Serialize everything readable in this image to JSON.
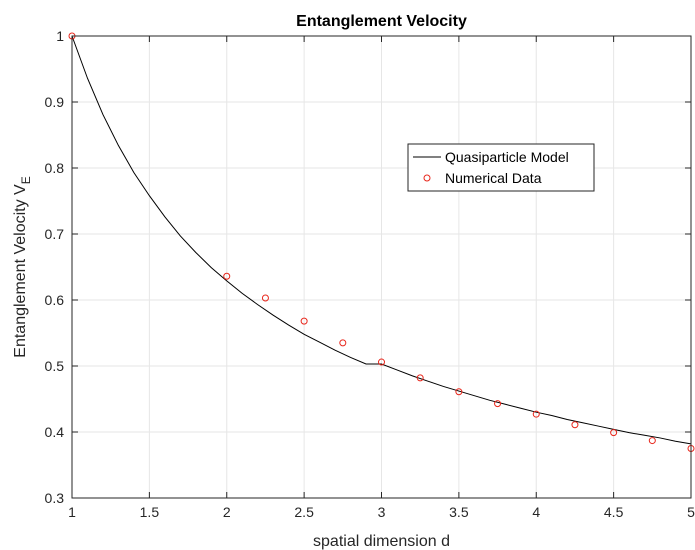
{
  "chart_data": {
    "type": "line",
    "title": "Entanglement Velocity",
    "xlabel": "spatial dimension d",
    "ylabel_main": "Entanglement Velocity V",
    "ylabel_sub": "E",
    "xlim": [
      1,
      5
    ],
    "ylim": [
      0.3,
      1
    ],
    "xticks": [
      1,
      1.5,
      2,
      2.5,
      3,
      3.5,
      4,
      4.5,
      5
    ],
    "xtick_labels": [
      "1",
      "1.5",
      "2",
      "2.5",
      "3",
      "3.5",
      "4",
      "4.5",
      "5"
    ],
    "yticks": [
      0.3,
      0.4,
      0.5,
      0.6,
      0.7,
      0.8,
      0.9,
      1
    ],
    "ytick_labels": [
      "0.3",
      "0.4",
      "0.5",
      "0.6",
      "0.7",
      "0.8",
      "0.9",
      "1"
    ],
    "grid": true,
    "legend_position": "upper-right-center",
    "series": [
      {
        "name": "Quasiparticle Model",
        "style": "line",
        "color": "#000000",
        "x": [
          1,
          1.1,
          1.2,
          1.3,
          1.4,
          1.5,
          1.6,
          1.7,
          1.8,
          1.9,
          2,
          2.1,
          2.2,
          2.3,
          2.4,
          2.5,
          2.6,
          2.7,
          2.8,
          2.9,
          3,
          3.1,
          3.2,
          3.3,
          3.4,
          3.5,
          3.6,
          3.7,
          3.8,
          3.9,
          4,
          4.1,
          4.2,
          4.3,
          4.4,
          4.5,
          4.6,
          4.7,
          4.8,
          4.9,
          5
        ],
        "y": [
          1.0,
          0.936,
          0.881,
          0.834,
          0.793,
          0.758,
          0.726,
          0.697,
          0.672,
          0.649,
          0.629,
          0.61,
          0.593,
          0.577,
          0.562,
          0.548,
          0.536,
          0.524,
          0.513,
          0.503,
          0.503,
          0.494,
          0.485,
          0.477,
          0.469,
          0.462,
          0.455,
          0.448,
          0.442,
          0.436,
          0.43,
          0.425,
          0.419,
          0.414,
          0.409,
          0.404,
          0.399,
          0.395,
          0.391,
          0.386,
          0.382
        ]
      },
      {
        "name": "Numerical Data",
        "style": "markers",
        "color": "#e8261b",
        "x": [
          1,
          2,
          2.25,
          2.5,
          2.75,
          3,
          3.25,
          3.5,
          3.75,
          4,
          4.25,
          4.5,
          4.75,
          5
        ],
        "y": [
          1.0,
          0.636,
          0.603,
          0.568,
          0.535,
          0.506,
          0.482,
          0.461,
          0.443,
          0.427,
          0.411,
          0.399,
          0.387,
          0.375
        ]
      }
    ]
  }
}
